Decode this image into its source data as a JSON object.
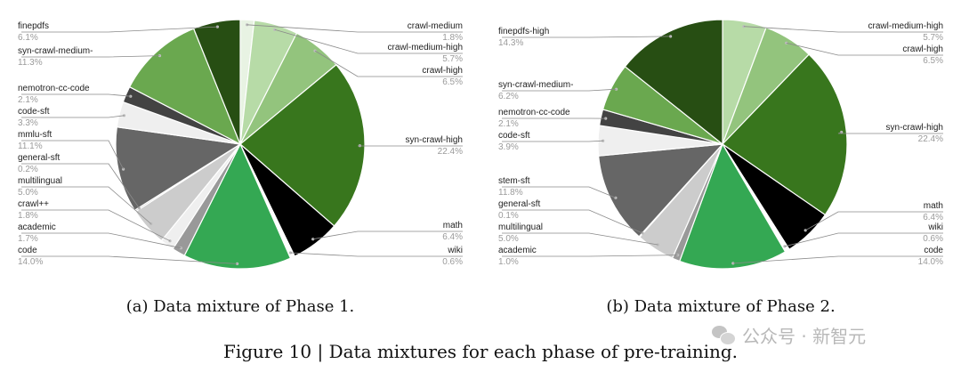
{
  "chart_data": [
    {
      "type": "pie",
      "caption": "(a) Data mixture of Phase 1.",
      "slices": [
        {
          "label": "crawl-medium",
          "value": 1.8,
          "value_label": "1.8%",
          "color": "#e8f3e3"
        },
        {
          "label": "crawl-medium-high",
          "value": 5.7,
          "value_label": "5.7%",
          "color": "#b7dba7"
        },
        {
          "label": "crawl-high",
          "value": 6.5,
          "value_label": "6.5%",
          "color": "#93c47d"
        },
        {
          "label": "syn-crawl-high",
          "value": 22.4,
          "value_label": "22.4%",
          "color": "#38761d"
        },
        {
          "label": "math",
          "value": 6.4,
          "value_label": "6.4%",
          "color": "#000000"
        },
        {
          "label": "wiki",
          "value": 0.6,
          "value_label": "0.6%",
          "color": "#ffffff"
        },
        {
          "label": "code",
          "value": 14.0,
          "value_label": "14.0%",
          "color": "#34a853"
        },
        {
          "label": "academic",
          "value": 1.7,
          "value_label": "1.7%",
          "color": "#999999"
        },
        {
          "label": "crawl++",
          "value": 1.8,
          "value_label": "1.8%",
          "color": "#efefef"
        },
        {
          "label": "multilingual",
          "value": 5.0,
          "value_label": "5.0%",
          "color": "#cccccc"
        },
        {
          "label": "general-sft",
          "value": 0.2,
          "value_label": "0.2%",
          "color": "#b7b7b7"
        },
        {
          "label": "mmlu-sft",
          "value": 11.1,
          "value_label": "11.1%",
          "color": "#666666"
        },
        {
          "label": "code-sft",
          "value": 3.3,
          "value_label": "3.3%",
          "color": "#efefef"
        },
        {
          "label": "nemotron-cc-code",
          "value": 2.1,
          "value_label": "2.1%",
          "color": "#434343"
        },
        {
          "label": "syn-crawl-medium-",
          "value": 11.3,
          "value_label": "11.3%",
          "color": "#6aa84f"
        },
        {
          "label": "finepdfs",
          "value": 6.1,
          "value_label": "6.1%",
          "color": "#274e13"
        }
      ]
    },
    {
      "type": "pie",
      "caption": "(b) Data mixture of Phase 2.",
      "slices": [
        {
          "label": "crawl-medium-high",
          "value": 5.7,
          "value_label": "5.7%",
          "color": "#b7dba7"
        },
        {
          "label": "crawl-high",
          "value": 6.5,
          "value_label": "6.5%",
          "color": "#93c47d"
        },
        {
          "label": "syn-crawl-high",
          "value": 22.4,
          "value_label": "22.4%",
          "color": "#38761d"
        },
        {
          "label": "math",
          "value": 6.4,
          "value_label": "6.4%",
          "color": "#000000"
        },
        {
          "label": "wiki",
          "value": 0.6,
          "value_label": "0.6%",
          "color": "#ffffff"
        },
        {
          "label": "code",
          "value": 14.0,
          "value_label": "14.0%",
          "color": "#34a853"
        },
        {
          "label": "academic",
          "value": 1.0,
          "value_label": "1.0%",
          "color": "#999999"
        },
        {
          "label": "multilingual",
          "value": 5.0,
          "value_label": "5.0%",
          "color": "#cccccc"
        },
        {
          "label": "general-sft",
          "value": 0.1,
          "value_label": "0.1%",
          "color": "#b7b7b7"
        },
        {
          "label": "stem-sft",
          "value": 11.8,
          "value_label": "11.8%",
          "color": "#666666"
        },
        {
          "label": "code-sft",
          "value": 3.9,
          "value_label": "3.9%",
          "color": "#efefef"
        },
        {
          "label": "nemotron-cc-code",
          "value": 2.1,
          "value_label": "2.1%",
          "color": "#434343"
        },
        {
          "label": "syn-crawl-medium-",
          "value": 6.2,
          "value_label": "6.2%",
          "color": "#6aa84f"
        },
        {
          "label": "finepdfs-high",
          "value": 14.3,
          "value_label": "14.3%",
          "color": "#274e13"
        }
      ]
    }
  ],
  "figure_caption": "Figure 10 | Data mixtures for each phase of pre-training.",
  "watermark": "公众号 · 新智元"
}
